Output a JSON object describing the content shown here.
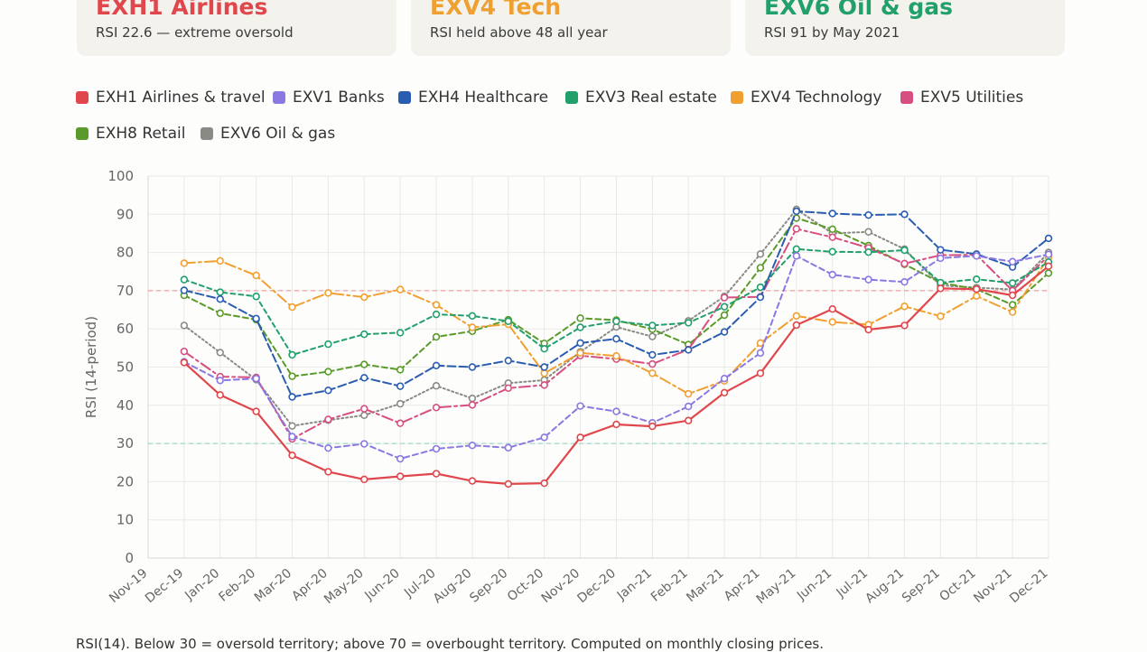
{
  "cards": [
    {
      "title": "EXH1 Airlines",
      "subtitle": "RSI 22.6 — extreme oversold",
      "color": "#e0474c"
    },
    {
      "title": "EXV4 Tech",
      "subtitle": "RSI held above 48 all year",
      "color": "#f0a030"
    },
    {
      "title": "EXV6 Oil & gas",
      "subtitle": "RSI 91 by May 2021",
      "color": "#22a06b"
    }
  ],
  "footnote": "RSI(14). Below 30 = oversold territory; above 70 = overbought territory. Computed on monthly closing prices.",
  "chart_data": {
    "type": "line",
    "ylabel": "RSI (14-period)",
    "xlabel": "",
    "ylim": [
      0,
      100
    ],
    "yticks": [
      0,
      10,
      20,
      30,
      40,
      50,
      60,
      70,
      80,
      90,
      100
    ],
    "grid": true,
    "legend_position": "top-left",
    "reference_lines": [
      {
        "value": 70,
        "color": "#f0a0a0"
      },
      {
        "value": 30,
        "color": "#9fd8c8"
      }
    ],
    "categories": [
      "Nov-19",
      "Dec-19",
      "Jan-20",
      "Feb-20",
      "Mar-20",
      "Apr-20",
      "May-20",
      "Jun-20",
      "Jul-20",
      "Aug-20",
      "Sep-20",
      "Oct-20",
      "Nov-20",
      "Dec-20",
      "Jan-21",
      "Feb-21",
      "Mar-21",
      "Apr-21",
      "May-21",
      "Jun-21",
      "Jul-21",
      "Aug-21",
      "Sep-21",
      "Oct-21",
      "Nov-21",
      "Dec-21"
    ],
    "series": [
      {
        "name": "EXH1 Airlines & travel",
        "color": "#e0474c",
        "dash": "",
        "values": [
          null,
          51.2,
          42.7,
          38.4,
          26.9,
          22.6,
          20.6,
          21.4,
          22.1,
          20.2,
          19.4,
          19.6,
          31.6,
          35.0,
          34.5,
          36.0,
          43.3,
          48.4,
          61.0,
          65.2,
          59.8,
          60.9,
          70.6,
          70.4,
          68.8,
          76.4
        ]
      },
      {
        "name": "EXV1 Banks",
        "color": "#8b78e0",
        "dash": "6 4",
        "values": [
          null,
          51.4,
          46.5,
          47.0,
          31.8,
          28.8,
          29.9,
          26.0,
          28.6,
          29.5,
          28.9,
          31.6,
          39.8,
          38.4,
          35.4,
          39.7,
          47.0,
          53.7,
          79.1,
          74.2,
          72.9,
          72.3,
          78.5,
          79.1,
          77.6,
          79.5
        ]
      },
      {
        "name": "EXH4 Healthcare",
        "color": "#2a5db0",
        "dash": "9 4",
        "values": [
          null,
          70.1,
          67.8,
          62.7,
          42.2,
          43.9,
          47.2,
          45.0,
          50.4,
          50.0,
          51.7,
          50.0,
          56.3,
          57.4,
          53.2,
          54.5,
          59.2,
          68.3,
          90.8,
          90.2,
          89.8,
          90.0,
          80.7,
          79.6,
          76.2,
          83.7
        ]
      },
      {
        "name": "EXV3 Real estate",
        "color": "#22a06b",
        "dash": "5 4",
        "values": [
          null,
          72.9,
          69.6,
          68.5,
          53.2,
          56.0,
          58.6,
          59.0,
          63.8,
          63.4,
          62.0,
          54.8,
          60.4,
          62.0,
          60.9,
          61.6,
          65.8,
          70.9,
          80.9,
          80.2,
          80.1,
          80.6,
          72.1,
          73.0,
          72.0,
          77.5
        ]
      },
      {
        "name": "EXV4 Technology",
        "color": "#f0a030",
        "dash": "12 4 3 4",
        "values": [
          null,
          77.2,
          77.8,
          74.0,
          65.7,
          69.4,
          68.3,
          70.3,
          66.3,
          60.4,
          61.2,
          48.4,
          53.7,
          52.9,
          48.4,
          43.0,
          46.4,
          56.3,
          63.4,
          61.8,
          61.1,
          65.9,
          63.3,
          68.6,
          64.4,
          78.7
        ]
      },
      {
        "name": "EXV5 Utilities",
        "color": "#d64f80",
        "dash": "12 4 3 4",
        "values": [
          null,
          54.1,
          47.5,
          47.3,
          31.2,
          36.3,
          39.1,
          35.3,
          39.4,
          40.1,
          44.5,
          45.3,
          53.0,
          52.1,
          50.8,
          54.6,
          68.2,
          68.4,
          86.2,
          84.0,
          81.2,
          77.1,
          79.3,
          79.4,
          70.0,
          79.1
        ]
      },
      {
        "name": "EXH8 Retail",
        "color": "#5a9a2a",
        "dash": "6 4",
        "values": [
          null,
          68.8,
          64.1,
          62.4,
          47.6,
          48.8,
          50.7,
          49.3,
          57.9,
          59.4,
          62.4,
          56.2,
          62.8,
          62.3,
          59.9,
          55.9,
          63.6,
          76.0,
          89.0,
          86.1,
          81.8,
          76.9,
          72.1,
          70.4,
          66.3,
          74.6
        ]
      },
      {
        "name": "EXV6 Oil & gas",
        "color": "#8a8a84",
        "dash": "2 3",
        "values": [
          null,
          60.9,
          53.8,
          46.7,
          34.6,
          36.1,
          37.4,
          40.4,
          45.1,
          41.8,
          45.8,
          46.6,
          54.0,
          60.5,
          58.0,
          62.1,
          68.5,
          79.6,
          91.3,
          85.0,
          85.4,
          80.9,
          71.4,
          70.8,
          70.3,
          80.0
        ]
      }
    ]
  }
}
